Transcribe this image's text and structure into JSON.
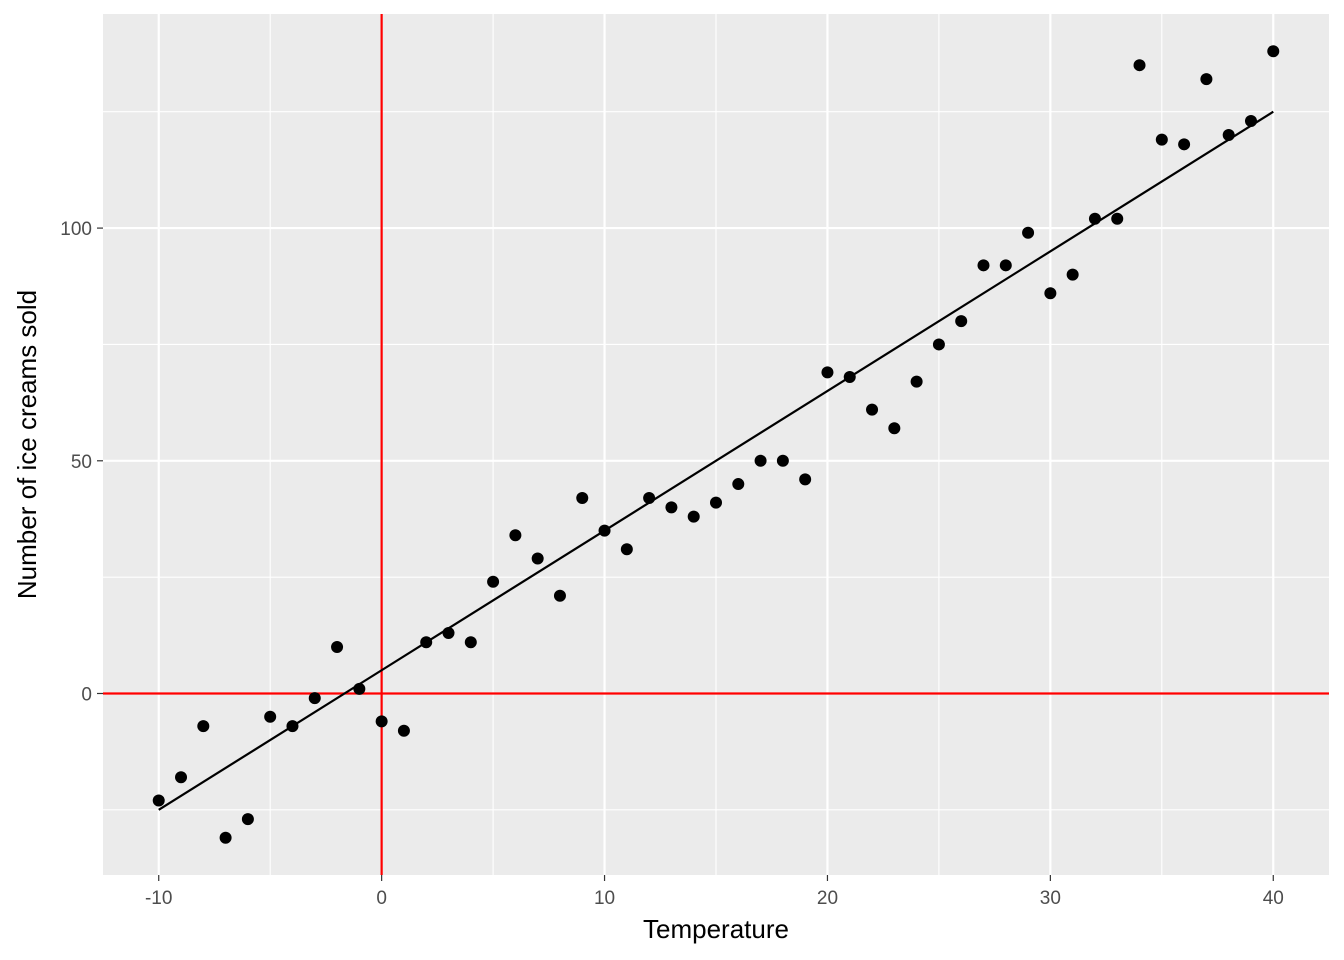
{
  "chart_data": {
    "type": "scatter",
    "title": "",
    "xlabel": "Temperature",
    "ylabel": "Number of ice creams sold",
    "xlim": [
      -12.5,
      42.5
    ],
    "ylim": [
      -39,
      146
    ],
    "x_ticks": [
      -10,
      0,
      10,
      20,
      30,
      40
    ],
    "y_ticks": [
      0,
      50,
      100
    ],
    "x_minor_gridlines": [
      -5,
      5,
      15,
      25,
      35
    ],
    "y_minor_gridlines": [
      -25,
      25,
      75,
      125
    ],
    "grid": true,
    "legend": "none",
    "point_color": "#000000",
    "panel_background": "#ebebeb",
    "grid_color": "#ffffff",
    "reference_line_color": "#ff0000",
    "reference_lines": {
      "x": 0,
      "y": 0
    },
    "trend_line": {
      "type": "linear",
      "x_range": [
        -10,
        40
      ],
      "y_range": [
        -25,
        125
      ],
      "color": "#000000"
    },
    "points": [
      {
        "x": -10,
        "y": -23
      },
      {
        "x": -9,
        "y": -18
      },
      {
        "x": -8,
        "y": -7
      },
      {
        "x": -7,
        "y": -31
      },
      {
        "x": -6,
        "y": -27
      },
      {
        "x": -5,
        "y": -5
      },
      {
        "x": -4,
        "y": -7
      },
      {
        "x": -3,
        "y": -1
      },
      {
        "x": -2,
        "y": 10
      },
      {
        "x": -1,
        "y": 1
      },
      {
        "x": 0,
        "y": -6
      },
      {
        "x": 1,
        "y": -8
      },
      {
        "x": 2,
        "y": 11
      },
      {
        "x": 3,
        "y": 13
      },
      {
        "x": 4,
        "y": 11
      },
      {
        "x": 5,
        "y": 24
      },
      {
        "x": 6,
        "y": 34
      },
      {
        "x": 7,
        "y": 29
      },
      {
        "x": 8,
        "y": 21
      },
      {
        "x": 9,
        "y": 42
      },
      {
        "x": 10,
        "y": 35
      },
      {
        "x": 11,
        "y": 31
      },
      {
        "x": 12,
        "y": 42
      },
      {
        "x": 13,
        "y": 40
      },
      {
        "x": 14,
        "y": 38
      },
      {
        "x": 15,
        "y": 41
      },
      {
        "x": 16,
        "y": 45
      },
      {
        "x": 17,
        "y": 50
      },
      {
        "x": 18,
        "y": 50
      },
      {
        "x": 19,
        "y": 46
      },
      {
        "x": 20,
        "y": 69
      },
      {
        "x": 21,
        "y": 68
      },
      {
        "x": 22,
        "y": 61
      },
      {
        "x": 23,
        "y": 57
      },
      {
        "x": 24,
        "y": 67
      },
      {
        "x": 25,
        "y": 75
      },
      {
        "x": 26,
        "y": 80
      },
      {
        "x": 27,
        "y": 92
      },
      {
        "x": 28,
        "y": 92
      },
      {
        "x": 29,
        "y": 99
      },
      {
        "x": 30,
        "y": 86
      },
      {
        "x": 31,
        "y": 90
      },
      {
        "x": 32,
        "y": 102
      },
      {
        "x": 33,
        "y": 102
      },
      {
        "x": 34,
        "y": 135
      },
      {
        "x": 35,
        "y": 119
      },
      {
        "x": 36,
        "y": 118
      },
      {
        "x": 37,
        "y": 132
      },
      {
        "x": 38,
        "y": 120
      },
      {
        "x": 39,
        "y": 123
      },
      {
        "x": 40,
        "y": 138
      }
    ]
  }
}
